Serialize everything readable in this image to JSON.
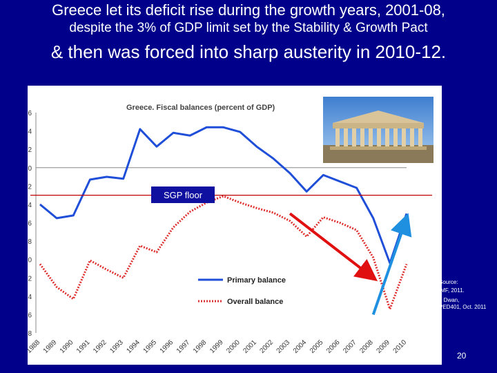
{
  "slide": {
    "title_line1": "Greece let its deficit rise during the growth years, 2001-08,",
    "title_line2": "despite the 3% of GDP limit set by the Stability & Growth Pact",
    "title_line3": "& then was forced into sharp austerity in 2010-12.",
    "source_1": "Source:",
    "source_2": "IMF, 2011.",
    "source_3": "I. Dwan,",
    "source_4": "PED401, Oct. 2011",
    "page_number": "20"
  },
  "chart_data": {
    "type": "line",
    "title": "Greece. Fiscal balances (percent of GDP)",
    "x": [
      "1988",
      "1989",
      "1990",
      "1991",
      "1992",
      "1993",
      "1994",
      "1995",
      "1996",
      "1997",
      "1998",
      "1999",
      "2000",
      "2001",
      "2002",
      "2003",
      "2004",
      "2005",
      "2006",
      "2007",
      "2008",
      "2009",
      "2010"
    ],
    "yticks": [
      "6",
      "4",
      "2",
      "0",
      "-2",
      "-4",
      "-6",
      "-8",
      "-10",
      "-12",
      "-14",
      "-16",
      "-18"
    ],
    "ylim": [
      -18,
      6
    ],
    "series": [
      {
        "name": "Primary balance",
        "color": "#1f4fd8",
        "style": "solid",
        "values": [
          -4,
          -5.5,
          -5.2,
          -1.3,
          -1,
          -1.2,
          4.2,
          2.3,
          3.8,
          3.5,
          4.4,
          4.4,
          3.9,
          2.3,
          1,
          -0.6,
          -2.6,
          -0.8,
          -1.5,
          -2.2,
          -5.5,
          -10.4,
          -5
        ]
      },
      {
        "name": "Overall balance",
        "color": "#e03030",
        "style": "dotted",
        "values": [
          -10.5,
          -13,
          -14.3,
          -10.1,
          -11.1,
          -12,
          -8.5,
          -9.2,
          -6.5,
          -4.8,
          -3.8,
          -3.1,
          -3.8,
          -4.4,
          -4.9,
          -5.8,
          -7.5,
          -5.4,
          -6,
          -6.8,
          -9.8,
          -15.4,
          -10.5
        ]
      }
    ],
    "reference_line": {
      "label": "SGP floor",
      "value": -3,
      "color": "#c00000"
    },
    "annotations": [
      {
        "type": "arrow",
        "color": "#e01010",
        "from": {
          "x": "2003",
          "y": -5
        },
        "to": {
          "x": "2008",
          "y": -12
        }
      },
      {
        "type": "arrow",
        "color": "#1f8fe0",
        "from": {
          "x": "2008",
          "y": -16
        },
        "to": {
          "x": "2010",
          "y": -5.5
        }
      }
    ],
    "grid": false,
    "legend": "bottom-center"
  }
}
